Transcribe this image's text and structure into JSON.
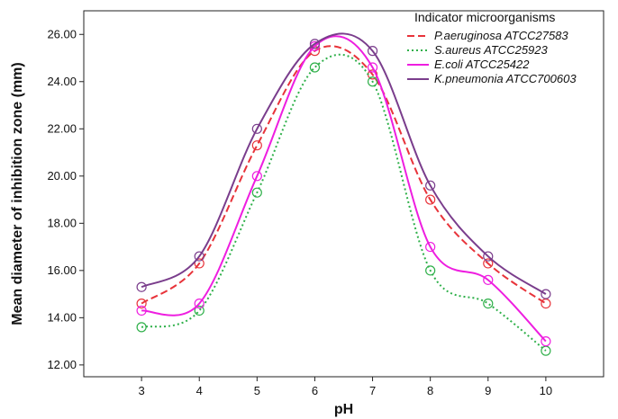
{
  "chart_data": {
    "type": "line",
    "xlabel": "pH",
    "ylabel": "Mean diameter of inhibition zone (mm)",
    "x": [
      3,
      4,
      5,
      6,
      7,
      8,
      9,
      10
    ],
    "x_ticks": [
      "3",
      "4",
      "5",
      "6",
      "7",
      "8",
      "9",
      "10"
    ],
    "xlim": [
      2,
      11
    ],
    "ylim": [
      11.5,
      27
    ],
    "y_ticks": [
      "12.00",
      "14.00",
      "16.00",
      "18.00",
      "20.00",
      "22.00",
      "24.00",
      "26.00"
    ],
    "grid": false,
    "legend": {
      "title": "Indicator microorganisms",
      "position": "top-right"
    },
    "series": [
      {
        "name": "P.aeruginosa ATCC27583",
        "color": "#e8333a",
        "dash": "dashed",
        "values": [
          14.6,
          16.3,
          21.3,
          25.3,
          24.3,
          19.0,
          16.3,
          14.6
        ]
      },
      {
        "name": "S.aureus ATCC25923",
        "color": "#2fb04a",
        "dash": "dotted",
        "values": [
          13.6,
          14.3,
          19.3,
          24.6,
          24.0,
          16.0,
          14.6,
          12.6
        ]
      },
      {
        "name": "E.coli ATCC25422",
        "color": "#ee1ee0",
        "dash": "solid",
        "values": [
          14.3,
          14.6,
          20.0,
          25.5,
          24.6,
          17.0,
          15.6,
          13.0
        ]
      },
      {
        "name": "K.pneumonia ATCC700603",
        "color": "#7a3d8c",
        "dash": "solid",
        "values": [
          15.3,
          16.6,
          22.0,
          25.6,
          25.3,
          19.6,
          16.6,
          15.0
        ]
      }
    ]
  }
}
